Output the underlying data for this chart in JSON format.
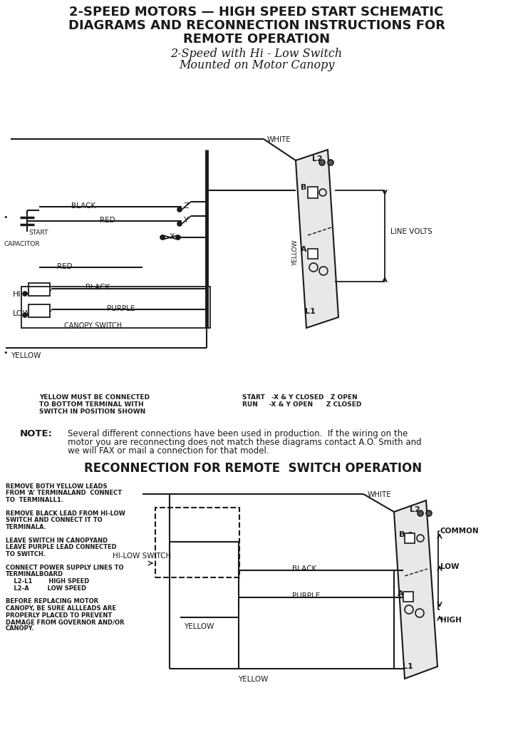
{
  "title_line1": "2-SPEED MOTORS — HIGH SPEED START SCHEMATIC",
  "title_line2": "DIAGRAMS AND RECONNECTION INSTRUCTIONS FOR",
  "title_line3": "REMOTE OPERATION",
  "subtitle_line1": "2-Speed with Hi - Low Switch",
  "subtitle_line2": "Mounted on Motor Canopy",
  "note_label": "NOTE:",
  "note_text1": "Several different connections have been used in production.  If the wiring on the",
  "note_text2": "motor you are reconnecting does not match these diagrams contact A.O. Smith and",
  "note_text3": "we will FAX or mail a connection for that model.",
  "reconnection_title": "RECONNECTION FOR REMOTE  SWITCH OPERATION",
  "yellow_note1": "YELLOW MUST BE CONNECTED",
  "yellow_note2": "TO BOTTOM TERMINAL WITH",
  "yellow_note3": "SWITCH IN POSITION SHOWN",
  "start_run1": "START   -X & Y CLOSED   Z OPEN",
  "start_run2": "RUN     -X & Y OPEN      Z CLOSED",
  "left_text": [
    "REMOVE BOTH YELLOW LEADS",
    "FROM ‘A’ TERMINALAND  CONNECT",
    "TO  TERMINALL1.",
    "",
    "REMOVE BLACK LEAD FROM HI-LOW",
    "SWITCH AND CONNECT IT TO",
    "TERMINALA.",
    "",
    "LEAVE SWITCH IN CANOPYAND",
    "LEAVE PURPLE LEAD CONNECTED",
    "TO SWITCH.",
    "",
    "CONNECT POWER SUPPLY LINES TO",
    "TERMINALBOARD",
    "    L2-L1        HIGH SPEED",
    "    L2-A         LOW SPEED",
    "",
    "BEFORE REPLACING MOTOR",
    "CANOPY, BE SURE ALLLEADS ARE",
    "PROPERLY PLACED TO PREVENT",
    "DAMAGE FROM GOVERNOR AND/OR",
    "CANOPY."
  ],
  "bg_color": "#ffffff",
  "fg_color": "#1a1a1a"
}
